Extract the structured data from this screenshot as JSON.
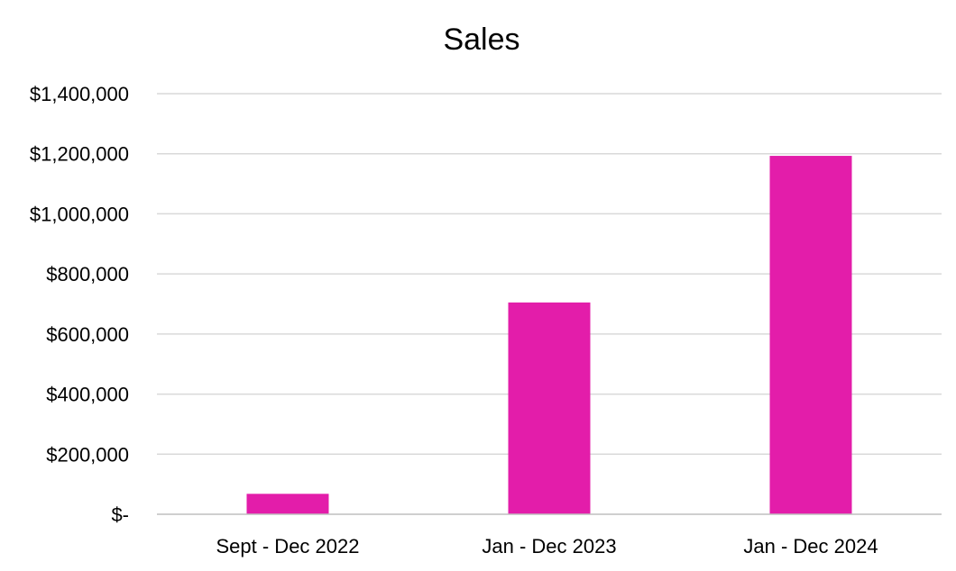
{
  "chart_data": {
    "type": "bar",
    "title": "Sales",
    "xlabel": "",
    "ylabel": "",
    "categories": [
      "Sept - Dec 2022",
      "Jan - Dec 2023",
      "Jan - Dec 2024"
    ],
    "values": [
      68000,
      705000,
      1193000
    ],
    "ylim": [
      0,
      1400000
    ],
    "yticks": [
      0,
      200000,
      400000,
      600000,
      800000,
      1000000,
      1200000,
      1400000
    ],
    "ytick_labels": [
      "$-",
      "$200,000",
      "$400,000",
      "$600,000",
      "$800,000",
      "$1,000,000",
      "$1,200,000",
      "$1,400,000"
    ],
    "grid": true,
    "legend": "none",
    "colors": {
      "bar": "#E31DAA",
      "grid": "#D9D9D9",
      "axis": "#BFBFBF",
      "text": "#000000"
    }
  }
}
